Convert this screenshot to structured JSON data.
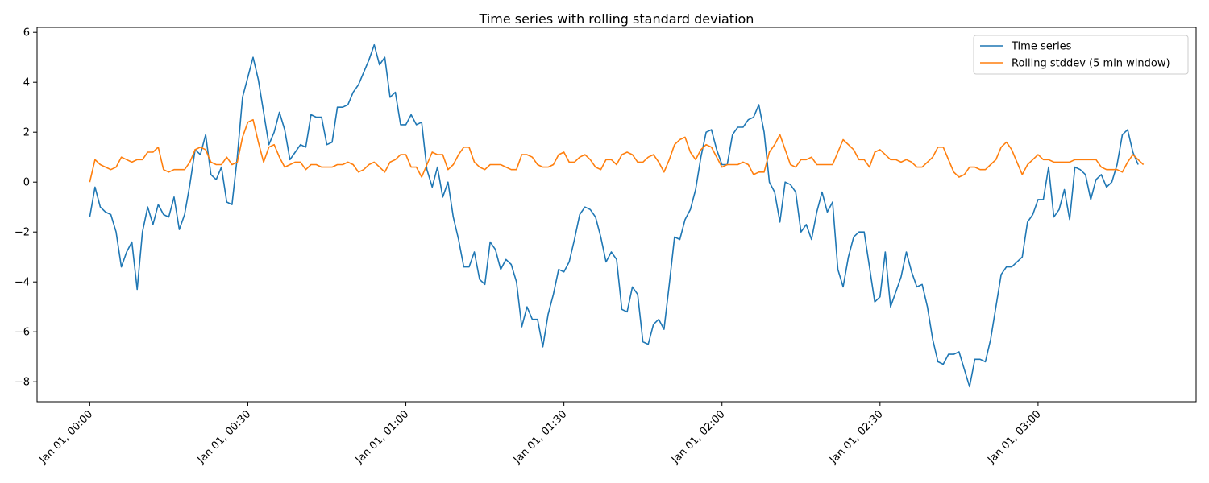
{
  "chart_data": {
    "type": "line",
    "title": "Time series with rolling standard deviation",
    "xlabel": "",
    "ylabel": "",
    "x_start": "2024-01-01T00:00",
    "x_step_minutes": 1,
    "x_range": [
      "2024-01-01T00:00",
      "2024-01-01T03:20"
    ],
    "xlim": [
      "2023-12-31T23:50",
      "2024-01-01T03:30"
    ],
    "ylim": [
      -8.8,
      6.2
    ],
    "x_ticks": [
      {
        "value": "2024-01-01T00:00",
        "label": "Jan 01, 00:00"
      },
      {
        "value": "2024-01-01T00:30",
        "label": "Jan 01, 00:30"
      },
      {
        "value": "2024-01-01T01:00",
        "label": "Jan 01, 01:00"
      },
      {
        "value": "2024-01-01T01:30",
        "label": "Jan 01, 01:30"
      },
      {
        "value": "2024-01-01T02:00",
        "label": "Jan 01, 02:00"
      },
      {
        "value": "2024-01-01T02:30",
        "label": "Jan 01, 02:30"
      },
      {
        "value": "2024-01-01T03:00",
        "label": "Jan 01, 03:00"
      }
    ],
    "y_ticks": [
      {
        "value": 6,
        "label": "6"
      },
      {
        "value": 4,
        "label": "4"
      },
      {
        "value": 2,
        "label": "2"
      },
      {
        "value": 0,
        "label": "0"
      },
      {
        "value": -2,
        "label": "−2"
      },
      {
        "value": -4,
        "label": "−4"
      },
      {
        "value": -6,
        "label": "−6"
      },
      {
        "value": -8,
        "label": "−8"
      }
    ],
    "grid": false,
    "legend_position": "top-right",
    "series": [
      {
        "name": "Time series",
        "color": "#1f77b4",
        "values": [
          -1.4,
          -0.2,
          -1.0,
          -1.2,
          -1.3,
          -2.0,
          -3.4,
          -2.8,
          -2.4,
          -4.3,
          -2.0,
          -1.0,
          -1.7,
          -0.9,
          -1.3,
          -1.4,
          -0.6,
          -1.9,
          -1.3,
          -0.1,
          1.3,
          1.1,
          1.9,
          0.3,
          0.1,
          0.6,
          -0.8,
          -0.9,
          1.0,
          3.4,
          4.2,
          5.0,
          4.1,
          2.8,
          1.5,
          2.0,
          2.8,
          2.1,
          0.9,
          1.2,
          1.5,
          1.4,
          2.7,
          2.6,
          2.6,
          1.5,
          1.6,
          3.0,
          3.0,
          3.1,
          3.6,
          3.9,
          4.4,
          4.9,
          5.5,
          4.7,
          5.0,
          3.4,
          3.6,
          2.3,
          2.3,
          2.7,
          2.3,
          2.4,
          0.5,
          -0.2,
          0.6,
          -0.6,
          0.0,
          -1.4,
          -2.3,
          -3.4,
          -3.4,
          -2.8,
          -3.9,
          -4.1,
          -2.4,
          -2.7,
          -3.5,
          -3.1,
          -3.3,
          -4.0,
          -5.8,
          -5.0,
          -5.5,
          -5.5,
          -6.6,
          -5.3,
          -4.5,
          -3.5,
          -3.6,
          -3.2,
          -2.3,
          -1.3,
          -1.0,
          -1.1,
          -1.4,
          -2.2,
          -3.2,
          -2.8,
          -3.1,
          -5.1,
          -5.2,
          -4.2,
          -4.5,
          -6.4,
          -6.5,
          -5.7,
          -5.5,
          -5.9,
          -4.1,
          -2.2,
          -2.3,
          -1.5,
          -1.1,
          -0.3,
          1.0,
          2.0,
          2.1,
          1.3,
          0.7,
          0.7,
          1.9,
          2.2,
          2.2,
          2.5,
          2.6,
          3.1,
          2.0,
          0.0,
          -0.4,
          -1.6,
          0.0,
          -0.1,
          -0.4,
          -2.0,
          -1.7,
          -2.3,
          -1.2,
          -0.4,
          -1.2,
          -0.8,
          -3.5,
          -4.2,
          -3.0,
          -2.2,
          -2.0,
          -2.0,
          -3.4,
          -4.8,
          -4.6,
          -2.8,
          -5.0,
          -4.4,
          -3.8,
          -2.8,
          -3.6,
          -4.2,
          -4.1,
          -5.0,
          -6.3,
          -7.2,
          -7.3,
          -6.9,
          -6.9,
          -6.8,
          -7.5,
          -8.2,
          -7.1,
          -7.1,
          -7.2,
          -6.3,
          -5.0,
          -3.7,
          -3.4,
          -3.4,
          -3.2,
          -3.0,
          -1.6,
          -1.3,
          -0.7,
          -0.7,
          0.6,
          -1.4,
          -1.1,
          -0.3,
          -1.5,
          0.6,
          0.5,
          0.3,
          -0.7,
          0.1,
          0.3,
          -0.2,
          0.0,
          0.7,
          1.9,
          2.1,
          1.2,
          0.7
        ]
      },
      {
        "name": "Rolling stddev (5 min window)",
        "color": "#ff7f0e",
        "values": [
          0.0,
          0.9,
          0.7,
          0.6,
          0.5,
          0.6,
          1.0,
          0.9,
          0.8,
          0.9,
          0.9,
          1.2,
          1.2,
          1.4,
          0.5,
          0.4,
          0.5,
          0.5,
          0.5,
          0.8,
          1.3,
          1.4,
          1.3,
          0.8,
          0.7,
          0.7,
          1.0,
          0.7,
          0.8,
          1.8,
          2.4,
          2.5,
          1.6,
          0.8,
          1.4,
          1.5,
          1.0,
          0.6,
          0.7,
          0.8,
          0.8,
          0.5,
          0.7,
          0.7,
          0.6,
          0.6,
          0.6,
          0.7,
          0.7,
          0.8,
          0.7,
          0.4,
          0.5,
          0.7,
          0.8,
          0.6,
          0.4,
          0.8,
          0.9,
          1.1,
          1.1,
          0.6,
          0.6,
          0.2,
          0.7,
          1.2,
          1.1,
          1.1,
          0.5,
          0.7,
          1.1,
          1.4,
          1.4,
          0.8,
          0.6,
          0.5,
          0.7,
          0.7,
          0.7,
          0.6,
          0.5,
          0.5,
          1.1,
          1.1,
          1.0,
          0.7,
          0.6,
          0.6,
          0.7,
          1.1,
          1.2,
          0.8,
          0.8,
          1.0,
          1.1,
          0.9,
          0.6,
          0.5,
          0.9,
          0.9,
          0.7,
          1.1,
          1.2,
          1.1,
          0.8,
          0.8,
          1.0,
          1.1,
          0.8,
          0.4,
          0.9,
          1.5,
          1.7,
          1.8,
          1.2,
          0.9,
          1.3,
          1.5,
          1.4,
          1.0,
          0.6,
          0.7,
          0.7,
          0.7,
          0.8,
          0.7,
          0.3,
          0.4,
          0.4,
          1.2,
          1.5,
          1.9,
          1.3,
          0.7,
          0.6,
          0.9,
          0.9,
          1.0,
          0.7,
          0.7,
          0.7,
          0.7,
          1.2,
          1.7,
          1.5,
          1.3,
          0.9,
          0.9,
          0.6,
          1.2,
          1.3,
          1.1,
          0.9,
          0.9,
          0.8,
          0.9,
          0.8,
          0.6,
          0.6,
          0.8,
          1.0,
          1.4,
          1.4,
          0.9,
          0.4,
          0.2,
          0.3,
          0.6,
          0.6,
          0.5,
          0.5,
          0.7,
          0.9,
          1.4,
          1.6,
          1.3,
          0.8,
          0.3,
          0.7,
          0.9,
          1.1,
          0.9,
          0.9,
          0.8,
          0.8,
          0.8,
          0.8,
          0.9,
          0.9,
          0.9,
          0.9,
          0.9,
          0.6,
          0.5,
          0.5,
          0.5,
          0.4,
          0.8,
          1.1,
          0.9,
          0.7
        ]
      }
    ]
  }
}
